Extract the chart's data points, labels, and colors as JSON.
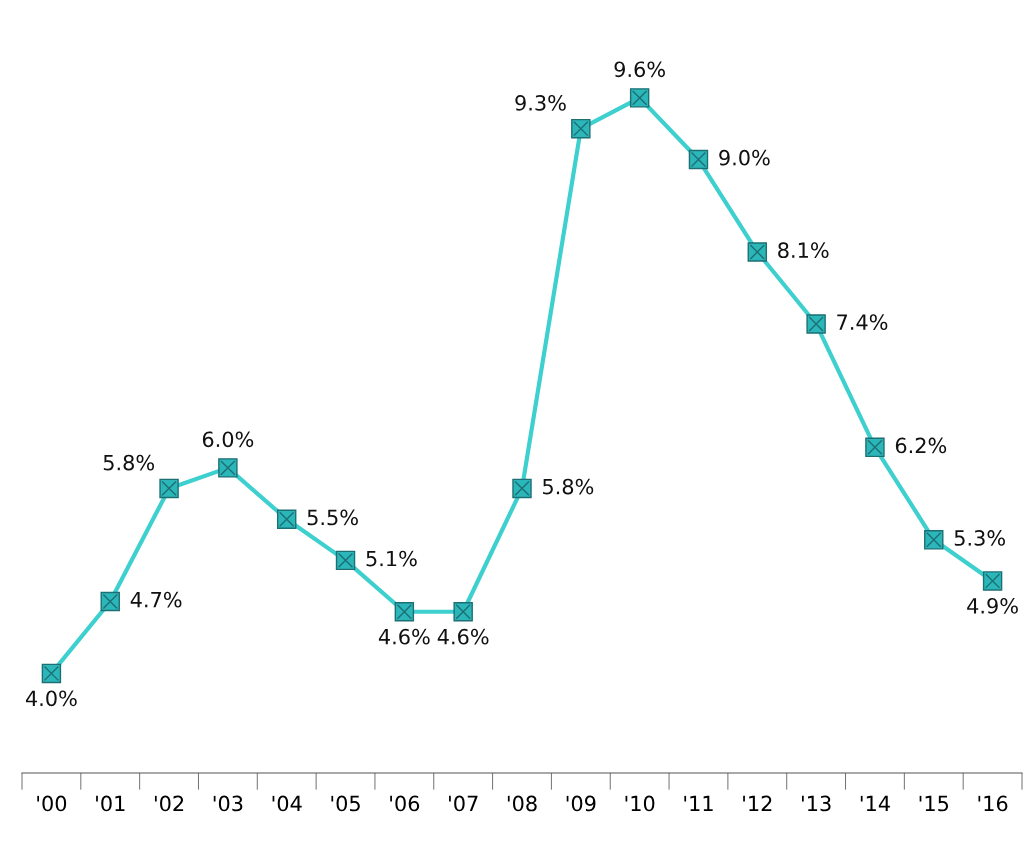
{
  "chart_data": {
    "type": "line",
    "categories": [
      "'00",
      "'01",
      "'02",
      "'03",
      "'04",
      "'05",
      "'06",
      "'07",
      "'08",
      "'09",
      "'10",
      "'11",
      "'12",
      "'13",
      "'14",
      "'15",
      "'16"
    ],
    "series": [
      {
        "color": "#3ecfcf",
        "values": [
          4.0,
          4.7,
          5.8,
          6.0,
          5.5,
          5.1,
          4.6,
          4.6,
          5.8,
          9.3,
          9.6,
          9.0,
          8.1,
          7.4,
          6.2,
          5.3,
          4.9
        ],
        "value_labels": [
          "4.0%",
          "4.7%",
          "5.8%",
          "6.0%",
          "5.5%",
          "5.1%",
          "4.6%",
          "4.6%",
          "5.8%",
          "9.3%",
          "9.6%",
          "9.0%",
          "8.1%",
          "7.4%",
          "6.2%",
          "5.3%",
          "4.9%"
        ]
      }
    ],
    "marker": "square",
    "line_style": "solid",
    "grid": false,
    "legend": false,
    "tick_labels": "x"
  }
}
